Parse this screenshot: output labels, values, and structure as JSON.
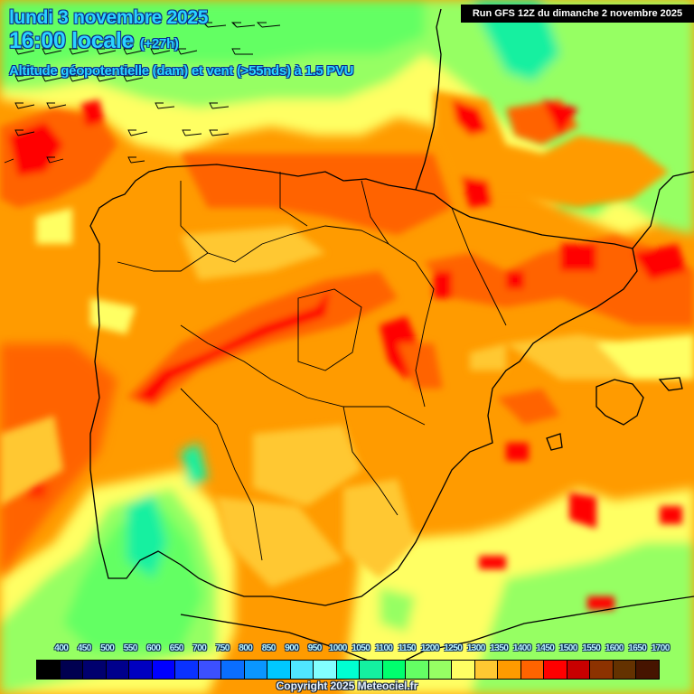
{
  "header": {
    "date_line": "lundi 3 novembre 2025",
    "time_line": "16:00 locale",
    "time_offset": "(+27h)",
    "parameter_line": "Altitude géopotentielle (dam) et vent (>55nds) à 1.5 PVU",
    "run_info": "Run GFS 12Z du dimanche 2 novembre 2025"
  },
  "footer": {
    "copyright": "Copyright 2025 Meteociel.fr"
  },
  "legend": {
    "unit": "dam",
    "labels": [
      "400",
      "450",
      "500",
      "550",
      "600",
      "650",
      "700",
      "750",
      "800",
      "850",
      "900",
      "950",
      "1000",
      "1050",
      "1100",
      "1150",
      "1200",
      "1250",
      "1300",
      "1350",
      "1400",
      "1450",
      "1500",
      "1550",
      "1600",
      "1650",
      "1700"
    ],
    "colors": [
      "#000000",
      "#000050",
      "#00006e",
      "#00008c",
      "#0000c0",
      "#0000ff",
      "#0a32ff",
      "#3c50ff",
      "#0a6eff",
      "#0a96ff",
      "#00c8ff",
      "#50e6ff",
      "#82ffff",
      "#00ffd2",
      "#14f0a0",
      "#00ff6e",
      "#64ff64",
      "#96ff64",
      "#ffff64",
      "#ffc832",
      "#ff9b00",
      "#ff6400",
      "#ff0000",
      "#c80000",
      "#8c3200",
      "#643200",
      "#461400"
    ]
  },
  "map": {
    "region": "Iberian Peninsula, Balearic Islands, southern France, northern Morocco/Algeria",
    "wind_barb_icon": "wind-barb-icon",
    "palette": {
      "green": "#64ff64",
      "light_green": "#96ff64",
      "teal": "#14f0a0",
      "yellow": "#ffff64",
      "light_orange": "#ffc832",
      "orange": "#ff9b00",
      "dark_orange": "#ff6400",
      "red": "#ff0000",
      "dark_red": "#c80000",
      "border": "#000000"
    }
  }
}
